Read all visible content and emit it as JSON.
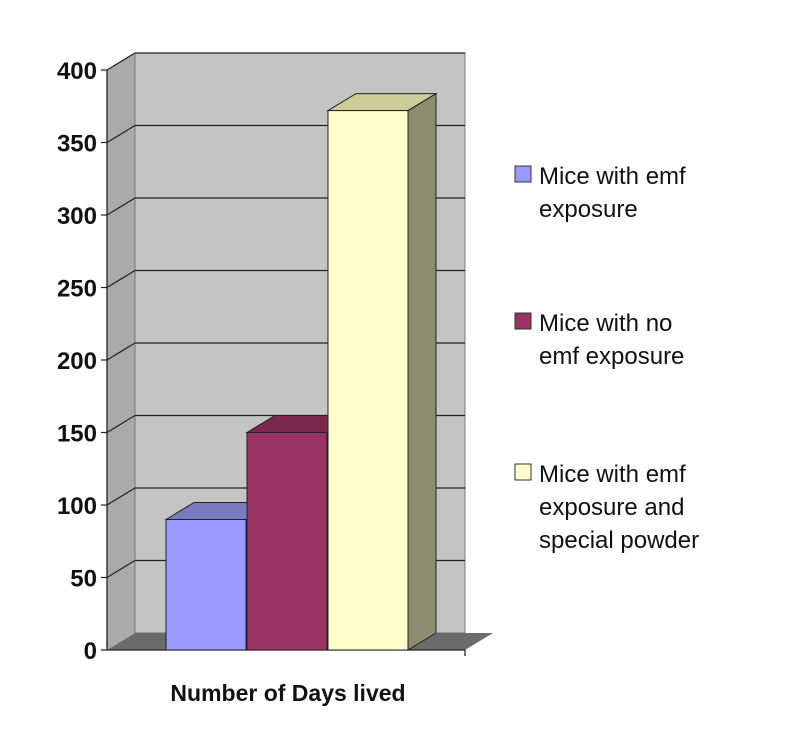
{
  "chart_data": {
    "type": "bar",
    "style": "3d-clustered",
    "xlabel": "Number of Days lived",
    "ylabel": "",
    "ylim": [
      0,
      400
    ],
    "ytick_step": 50,
    "yticks": [
      "0",
      "50",
      "100",
      "150",
      "200",
      "250",
      "300",
      "350",
      "400"
    ],
    "grid": true,
    "legend_position": "right",
    "series": [
      {
        "name": "Mice with emf exposure",
        "legend_lines": [
          "Mice with emf",
          "exposure"
        ],
        "value": 90,
        "color": "#9999ff"
      },
      {
        "name": "Mice with no emf exposure",
        "legend_lines": [
          "Mice with no",
          "emf exposure"
        ],
        "value": 150,
        "color": "#993366"
      },
      {
        "name": "Mice with emf exposure and special powder",
        "legend_lines": [
          "Mice with emf",
          "exposure and",
          "special powder"
        ],
        "value": 372,
        "color": "#ffffcc"
      }
    ]
  }
}
